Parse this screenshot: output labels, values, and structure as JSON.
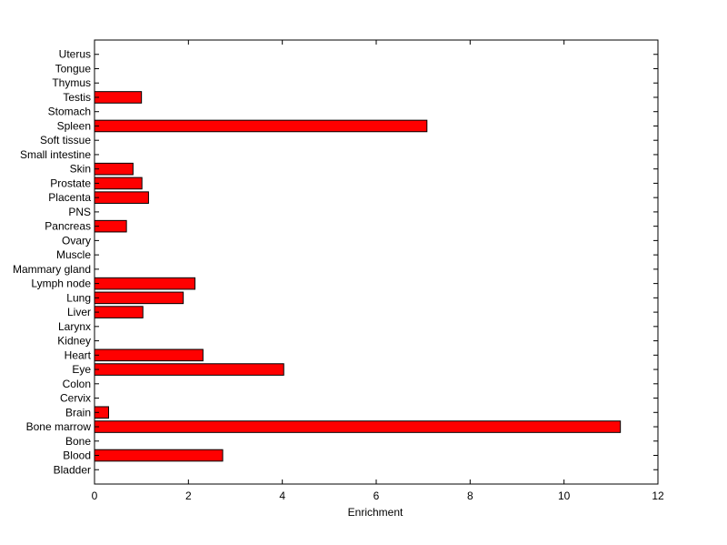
{
  "chart_data": {
    "type": "bar",
    "orientation": "horizontal",
    "xlabel": "Enrichment",
    "ylabel": "",
    "title": "",
    "xlim": [
      0,
      12
    ],
    "xticks": [
      0,
      2,
      4,
      6,
      8,
      10,
      12
    ],
    "xtick_labels": [
      "0",
      "2",
      "4",
      "6",
      "8",
      "10",
      "12"
    ],
    "grid": false,
    "legend": "none",
    "bar_color": "#ff0000",
    "bar_edge_color": "#000000",
    "categories": [
      "Bladder",
      "Blood",
      "Bone",
      "Bone marrow",
      "Brain",
      "Cervix",
      "Colon",
      "Eye",
      "Heart",
      "Kidney",
      "Larynx",
      "Liver",
      "Lung",
      "Lymph node",
      "Mammary gland",
      "Muscle",
      "Ovary",
      "Pancreas",
      "PNS",
      "Placenta",
      "Prostate",
      "Skin",
      "Small intestine",
      "Soft tissue",
      "Spleen",
      "Stomach",
      "Testis",
      "Thymus",
      "Tongue",
      "Uterus"
    ],
    "values": [
      0,
      2.73,
      0,
      11.2,
      0.3,
      0,
      0,
      4.03,
      2.31,
      0,
      0,
      1.03,
      1.89,
      2.14,
      0,
      0,
      0,
      0.68,
      0,
      1.15,
      1.01,
      0.82,
      0,
      0,
      7.08,
      0,
      1.0,
      0,
      0,
      0
    ]
  }
}
